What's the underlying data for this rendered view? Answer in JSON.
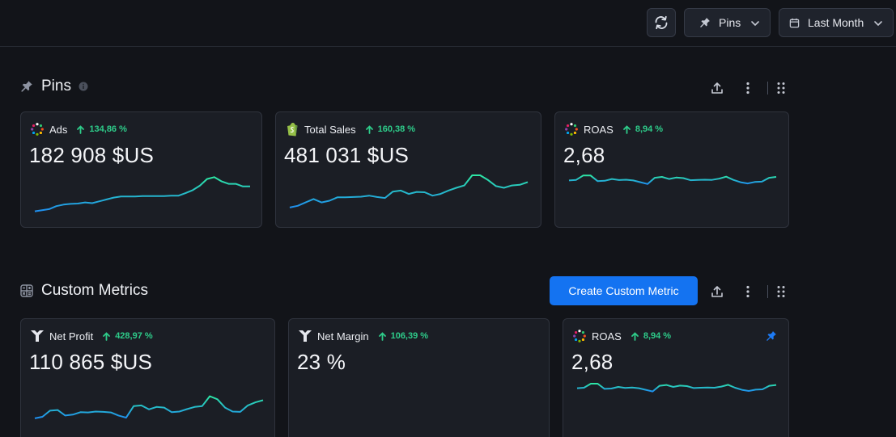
{
  "topbar": {
    "pins_label": "Pins",
    "period_label": "Last Month"
  },
  "sections": {
    "pins": {
      "title": "Pins"
    },
    "custom": {
      "title": "Custom Metrics",
      "create_label": "Create Custom Metric"
    }
  },
  "colors": {
    "accent": "#1473f1",
    "trend_up": "#2ecc8a",
    "spark_start": "#1f8ff0",
    "spark_end": "#2de6a4"
  },
  "cards": [
    {
      "title": "Ads",
      "trend": "134,86 %",
      "value": "182 908 $US",
      "icon": "ads-icon",
      "series": [
        0.03,
        0.06,
        0.09,
        0.17,
        0.21,
        0.23,
        0.24,
        0.27,
        0.25,
        0.3,
        0.35,
        0.4,
        0.43,
        0.43,
        0.43,
        0.44,
        0.44,
        0.44,
        0.44,
        0.45,
        0.45,
        0.52,
        0.6,
        0.72,
        0.9,
        0.95,
        0.84,
        0.77,
        0.77,
        0.7,
        0.7
      ]
    },
    {
      "title": "Total Sales",
      "trend": "160,38 %",
      "value": "481 031 $US",
      "icon": "shopify-icon",
      "series": [
        0.05,
        0.1,
        0.2,
        0.3,
        0.2,
        0.25,
        0.35,
        0.35,
        0.36,
        0.37,
        0.4,
        0.36,
        0.33,
        0.52,
        0.55,
        0.45,
        0.51,
        0.5,
        0.4,
        0.45,
        0.55,
        0.63,
        0.7,
        1.0,
        1.0,
        0.86,
        0.68,
        0.63,
        0.7,
        0.72,
        0.8
      ]
    },
    {
      "title": "ROAS",
      "trend": "8,94 %",
      "value": "2,68",
      "icon": "ads-icon",
      "series": [
        0.62,
        0.65,
        0.9,
        0.9,
        0.58,
        0.6,
        0.7,
        0.64,
        0.66,
        0.62,
        0.52,
        0.42,
        0.77,
        0.82,
        0.7,
        0.78,
        0.75,
        0.63,
        0.65,
        0.66,
        0.65,
        0.72,
        0.83,
        0.65,
        0.52,
        0.45,
        0.53,
        0.55,
        0.77,
        0.82
      ]
    },
    {
      "title": "Net Profit",
      "trend": "428,97 %",
      "value": "110 865 $US",
      "icon": "triple-whale-icon",
      "series": [
        0.03,
        0.08,
        0.28,
        0.3,
        0.12,
        0.15,
        0.23,
        0.22,
        0.25,
        0.24,
        0.22,
        0.12,
        0.05,
        0.43,
        0.45,
        0.32,
        0.4,
        0.38,
        0.23,
        0.25,
        0.33,
        0.4,
        0.43,
        0.75,
        0.65,
        0.38,
        0.25,
        0.24,
        0.45,
        0.55,
        0.62
      ]
    },
    {
      "title": "Net Margin",
      "trend": "106,39 %",
      "value": "23 %",
      "icon": "triple-whale-icon",
      "series": []
    },
    {
      "title": "ROAS",
      "trend": "8,94 %",
      "value": "2,68",
      "icon": "ads-icon",
      "pinned": true,
      "series": [
        0.62,
        0.65,
        0.9,
        0.9,
        0.58,
        0.6,
        0.7,
        0.64,
        0.66,
        0.62,
        0.52,
        0.42,
        0.77,
        0.82,
        0.7,
        0.78,
        0.75,
        0.63,
        0.65,
        0.66,
        0.65,
        0.72,
        0.83,
        0.65,
        0.52,
        0.45,
        0.53,
        0.55,
        0.77,
        0.82
      ]
    }
  ]
}
